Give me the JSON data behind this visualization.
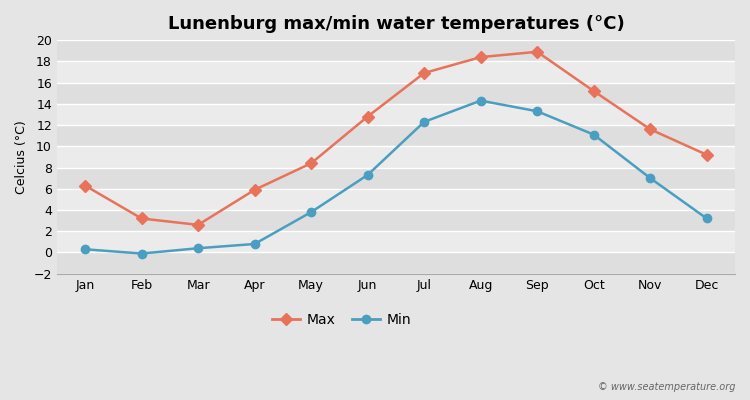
{
  "title": "Lunenburg max/min water temperatures (°C)",
  "ylabel": "Celcius (°C)",
  "months": [
    "Jan",
    "Feb",
    "Mar",
    "Apr",
    "May",
    "Jun",
    "Jul",
    "Aug",
    "Sep",
    "Oct",
    "Nov",
    "Dec"
  ],
  "max_values": [
    6.3,
    3.2,
    2.6,
    5.9,
    8.4,
    12.8,
    16.9,
    18.4,
    18.9,
    15.2,
    11.6,
    9.2
  ],
  "min_values": [
    0.3,
    -0.1,
    0.4,
    0.8,
    3.8,
    7.3,
    12.3,
    14.3,
    13.3,
    11.1,
    7.0,
    3.2
  ],
  "max_color": "#E8725A",
  "min_color": "#4A9FC0",
  "max_label": "Max",
  "min_label": "Min",
  "ylim": [
    -2,
    20
  ],
  "yticks": [
    -2,
    0,
    2,
    4,
    6,
    8,
    10,
    12,
    14,
    16,
    18,
    20
  ],
  "fig_bg_color": "#e5e5e5",
  "plot_bg_light": "#ebebeb",
  "plot_bg_dark": "#dedede",
  "grid_color": "#ffffff",
  "watermark": "© www.seatemperature.org",
  "title_fontsize": 13,
  "axis_label_fontsize": 9,
  "tick_fontsize": 9,
  "legend_fontsize": 10,
  "max_marker": "D",
  "min_marker": "o",
  "marker_size": 6,
  "line_width": 1.8
}
